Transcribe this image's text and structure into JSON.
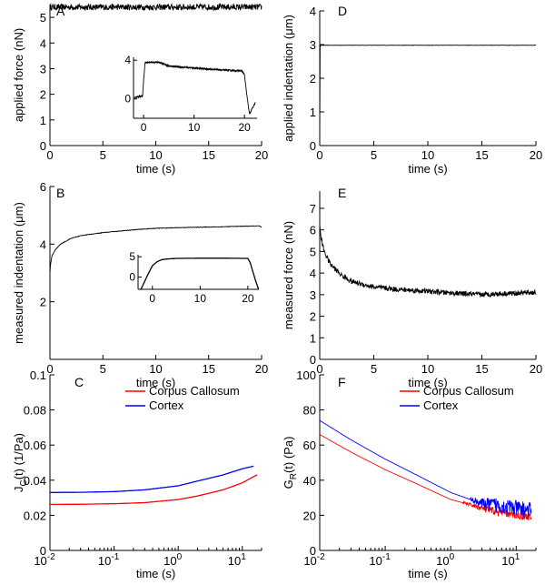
{
  "figure": {
    "panels": [
      "A",
      "B",
      "C",
      "D",
      "E",
      "F"
    ]
  },
  "chart_data": [
    {
      "id": "A",
      "type": "line",
      "panel_label": "A",
      "xlabel": "time (s)",
      "ylabel": "applied force (nN)",
      "xlim": [
        0,
        20
      ],
      "ylim": [
        0,
        5.5
      ],
      "xticks": [
        0,
        5,
        10,
        15,
        20
      ],
      "yticks": [
        0,
        1,
        2,
        3,
        4,
        5
      ],
      "series": [
        {
          "name": "applied force",
          "color": "#000000",
          "noise": 0.12,
          "x": [
            0,
            0.02,
            20
          ],
          "y": [
            5.4,
            5.4,
            5.4
          ]
        }
      ],
      "inset": {
        "xlim": [
          -2,
          22.5
        ],
        "ylim": [
          -2,
          4.3
        ],
        "xticks": [
          0,
          10,
          20
        ],
        "yticks": [
          0,
          4
        ],
        "series": [
          {
            "name": "inset force",
            "color": "#000000",
            "noise": 0.08,
            "x": [
              -1.8,
              -0.2,
              0,
              0.3,
              3,
              5,
              10,
              15,
              19.5,
              20,
              20.5,
              21,
              21.6,
              22.2
            ],
            "y": [
              0.15,
              0.3,
              2.0,
              3.8,
              3.8,
              3.4,
              3.2,
              3.0,
              2.9,
              2.5,
              0.3,
              -1.6,
              -0.9,
              -0.4
            ]
          }
        ]
      }
    },
    {
      "id": "B",
      "type": "line",
      "panel_label": "B",
      "xlabel": "time (s)",
      "ylabel": "measured indentation (μm)",
      "xlim": [
        0,
        20
      ],
      "ylim": [
        0,
        6
      ],
      "xticks": [
        0,
        5,
        10,
        15,
        20
      ],
      "yticks": [
        2,
        4,
        6
      ],
      "series": [
        {
          "name": "measured indentation",
          "color": "#000000",
          "noise": 0.01,
          "x": [
            0,
            0.05,
            0.2,
            0.5,
            1,
            2,
            3,
            5,
            8,
            10,
            13,
            16,
            18,
            19.8,
            20
          ],
          "y": [
            3.0,
            3.3,
            3.6,
            3.8,
            4.0,
            4.2,
            4.3,
            4.4,
            4.5,
            4.55,
            4.58,
            4.6,
            4.62,
            4.63,
            4.58
          ]
        }
      ],
      "inset": {
        "xlim": [
          -3,
          22.3
        ],
        "ylim": [
          -3,
          5.5
        ],
        "xticks": [
          0,
          10,
          20
        ],
        "yticks": [
          0,
          5
        ],
        "series": [
          {
            "name": "inset indentation",
            "color": "#000000",
            "noise": 0,
            "x": [
              -2.4,
              -1,
              0,
              1,
              2,
              3,
              5,
              10,
              15,
              20,
              20.5,
              21,
              21.6,
              22.2
            ],
            "y": [
              -3,
              0.5,
              2.8,
              3.8,
              4.3,
              4.45,
              4.6,
              4.65,
              4.65,
              4.6,
              3.5,
              1.5,
              -0.8,
              -2.9
            ]
          }
        ]
      }
    },
    {
      "id": "C",
      "type": "line",
      "panel_label": "C",
      "xscale": "log",
      "xlabel": "time (s)",
      "ylabel": "J",
      "ylabel_sub": "C",
      "ylabel_rest": "(t) (1/Pa)",
      "xlim": [
        0.01,
        20
      ],
      "ylim": [
        0,
        0.1
      ],
      "xtick_labels": [
        {
          "value": 0.01,
          "base": "10",
          "exp": "-2"
        },
        {
          "value": 0.1,
          "base": "10",
          "exp": "-1"
        },
        {
          "value": 1,
          "base": "10",
          "exp": "0"
        },
        {
          "value": 10,
          "base": "10",
          "exp": "1"
        }
      ],
      "yticks": [
        0,
        0.02,
        0.04,
        0.06,
        0.08,
        0.1
      ],
      "legend": {
        "position": "top-right"
      },
      "series": [
        {
          "name": "Corpus Callosum",
          "color": "#ff0000",
          "noise": 0,
          "x": [
            0.01,
            0.03,
            0.1,
            0.3,
            1,
            2,
            5,
            10,
            15,
            17
          ],
          "y": [
            0.0262,
            0.0263,
            0.0266,
            0.0272,
            0.029,
            0.031,
            0.0345,
            0.0385,
            0.042,
            0.043
          ]
        },
        {
          "name": "Cortex",
          "color": "#0000ff",
          "noise": 0,
          "x": [
            0.01,
            0.03,
            0.1,
            0.3,
            1,
            2,
            5,
            10,
            15
          ],
          "y": [
            0.033,
            0.0331,
            0.0335,
            0.0345,
            0.0368,
            0.0395,
            0.043,
            0.0465,
            0.048
          ]
        }
      ]
    },
    {
      "id": "D",
      "type": "line",
      "panel_label": "D",
      "xlabel": "time (s)",
      "ylabel": "applied indentation (μm)",
      "xlim": [
        0,
        20
      ],
      "ylim": [
        0,
        4
      ],
      "xticks": [
        0,
        5,
        10,
        15,
        20
      ],
      "yticks": [
        0,
        1,
        2,
        3,
        4
      ],
      "series": [
        {
          "name": "applied indentation",
          "color": "#000000",
          "noise": 0.005,
          "x": [
            0,
            0.03,
            0.08,
            20
          ],
          "y": [
            0.2,
            2.9,
            2.98,
            2.98
          ]
        }
      ]
    },
    {
      "id": "E",
      "type": "line",
      "panel_label": "E",
      "xlabel": "time (s)",
      "ylabel": "measured force (nN)",
      "xlim": [
        0,
        20
      ],
      "ylim": [
        0,
        7.8
      ],
      "xticks": [
        0,
        5,
        10,
        15,
        20
      ],
      "yticks": [
        0,
        1,
        2,
        3,
        4,
        5,
        6,
        7
      ],
      "series": [
        {
          "name": "measured force",
          "color": "#000000",
          "noise": 0.12,
          "x": [
            0,
            0.1,
            0.3,
            0.6,
            1,
            2,
            3,
            5,
            7,
            10,
            13,
            15,
            17,
            20
          ],
          "y": [
            6.3,
            5.7,
            5.2,
            4.8,
            4.4,
            3.9,
            3.6,
            3.35,
            3.25,
            3.15,
            3.05,
            3.0,
            3.05,
            3.1
          ]
        }
      ]
    },
    {
      "id": "F",
      "type": "line",
      "panel_label": "F",
      "xscale": "log",
      "xlabel": "time (s)",
      "ylabel": "G",
      "ylabel_sub": "R",
      "ylabel_rest": "(t) (Pa)",
      "xlim": [
        0.01,
        20
      ],
      "ylim": [
        0,
        100
      ],
      "xtick_labels": [
        {
          "value": 0.01,
          "base": "10",
          "exp": "-2"
        },
        {
          "value": 0.1,
          "base": "10",
          "exp": "-1"
        },
        {
          "value": 1,
          "base": "10",
          "exp": "0"
        },
        {
          "value": 10,
          "base": "10",
          "exp": "1"
        }
      ],
      "yticks": [
        0,
        20,
        40,
        60,
        80,
        100
      ],
      "legend": {
        "position": "top-right"
      },
      "series": [
        {
          "name": "Corpus Callosum",
          "color": "#ff0000",
          "noise": 2.2,
          "noise_from": 1.5,
          "x": [
            0.01,
            0.03,
            0.1,
            0.3,
            1,
            2,
            3,
            5,
            10,
            17
          ],
          "y": [
            66,
            56,
            46,
            38,
            29,
            26,
            24,
            22,
            20,
            19
          ]
        },
        {
          "name": "Cortex",
          "color": "#0000ff",
          "noise": 4.5,
          "noise_from": 2,
          "x": [
            0.01,
            0.03,
            0.1,
            0.3,
            1,
            2,
            3,
            5,
            10,
            17
          ],
          "y": [
            74,
            63,
            52,
            43,
            33,
            29,
            27,
            26,
            24,
            23
          ]
        }
      ]
    }
  ]
}
